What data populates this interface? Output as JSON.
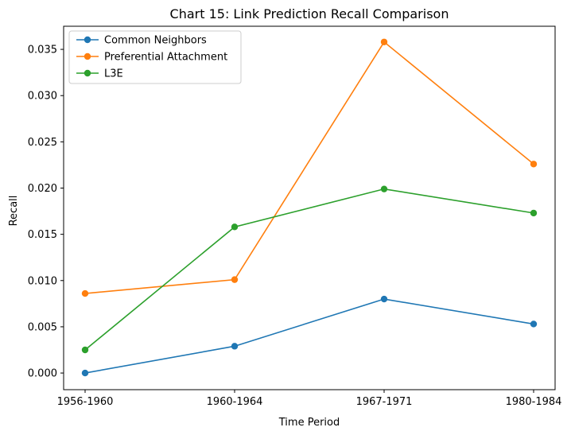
{
  "chart_data": {
    "type": "line",
    "title": "Chart 15: Link Prediction Recall Comparison",
    "xlabel": "Time Period",
    "ylabel": "Recall",
    "categories": [
      "1956-1960",
      "1960-1964",
      "1967-1971",
      "1980-1984"
    ],
    "ylim": [
      -0.0018,
      0.0375
    ],
    "yticks": [
      0.0,
      0.005,
      0.01,
      0.015,
      0.02,
      0.025,
      0.03,
      0.035
    ],
    "ytick_labels": [
      "0.000",
      "0.005",
      "0.010",
      "0.015",
      "0.020",
      "0.025",
      "0.030",
      "0.035"
    ],
    "grid": false,
    "legend_position": "upper-left",
    "series": [
      {
        "name": "Common Neighbors",
        "color": "#1f77b4",
        "marker": "circle",
        "values": [
          0.0,
          0.0029,
          0.008,
          0.0053
        ]
      },
      {
        "name": "Preferential Attachment",
        "color": "#ff7f0e",
        "marker": "circle",
        "values": [
          0.0086,
          0.0101,
          0.0358,
          0.0226
        ]
      },
      {
        "name": "L3E",
        "color": "#2ca02c",
        "marker": "circle",
        "values": [
          0.0025,
          0.0158,
          0.0199,
          0.0173
        ]
      }
    ]
  }
}
